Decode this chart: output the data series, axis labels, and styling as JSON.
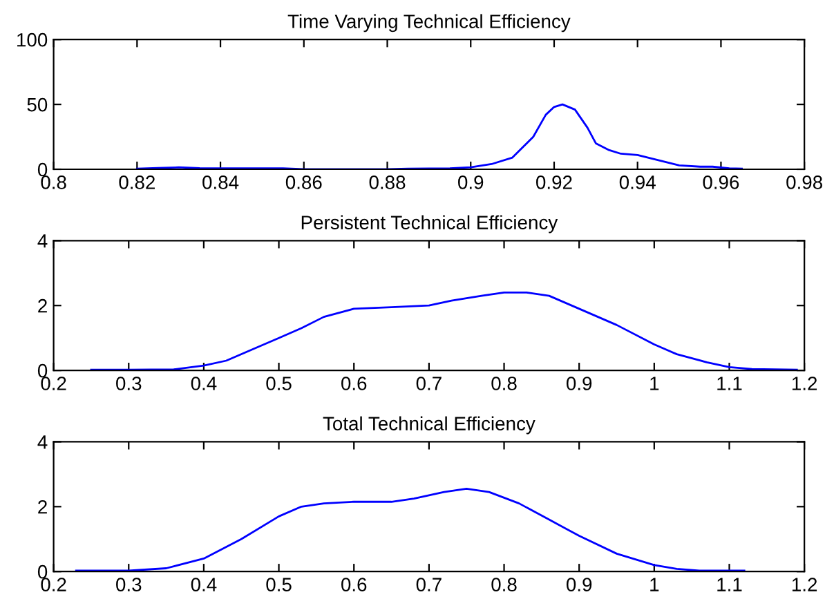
{
  "chart_data": [
    {
      "type": "line",
      "title": "Time Varying Technical Efficiency",
      "xlim": [
        0.8,
        0.98
      ],
      "xticks": [
        0.8,
        0.82,
        0.84,
        0.86,
        0.88,
        0.9,
        0.92,
        0.94,
        0.96,
        0.98
      ],
      "ylim": [
        0,
        100
      ],
      "yticks": [
        0,
        50,
        100
      ],
      "grid": false,
      "legend": false,
      "series": [
        {
          "color": "#0000ff",
          "x": [
            0.82,
            0.825,
            0.83,
            0.835,
            0.845,
            0.855,
            0.86,
            0.87,
            0.88,
            0.885,
            0.895,
            0.9,
            0.905,
            0.91,
            0.915,
            0.918,
            0.92,
            0.922,
            0.925,
            0.928,
            0.93,
            0.933,
            0.936,
            0.94,
            0.945,
            0.95,
            0.955,
            0.958,
            0.962,
            0.965
          ],
          "values": [
            0.5,
            1,
            1.5,
            0.8,
            0.7,
            0.7,
            0,
            0,
            0,
            0.5,
            0.7,
            1.5,
            4,
            9,
            25,
            42,
            48,
            50,
            46,
            32,
            20,
            15,
            12,
            11,
            7,
            3,
            2,
            2,
            0.7,
            0.5
          ]
        }
      ]
    },
    {
      "type": "line",
      "title": "Persistent Technical Efficiency",
      "xlim": [
        0.2,
        1.2
      ],
      "xticks": [
        0.2,
        0.3,
        0.4,
        0.5,
        0.6,
        0.7,
        0.8,
        0.9,
        1,
        1.1,
        1.2
      ],
      "ylim": [
        0,
        4
      ],
      "yticks": [
        0,
        2,
        4
      ],
      "grid": false,
      "legend": false,
      "series": [
        {
          "color": "#0000ff",
          "x": [
            0.25,
            0.3,
            0.36,
            0.4,
            0.43,
            0.47,
            0.5,
            0.53,
            0.56,
            0.6,
            0.65,
            0.7,
            0.73,
            0.77,
            0.8,
            0.83,
            0.86,
            0.9,
            0.95,
            1.0,
            1.03,
            1.07,
            1.1,
            1.13,
            1.19
          ],
          "values": [
            0.02,
            0.02,
            0.03,
            0.15,
            0.3,
            0.7,
            1.0,
            1.3,
            1.65,
            1.9,
            1.95,
            2.0,
            2.15,
            2.3,
            2.4,
            2.4,
            2.3,
            1.9,
            1.4,
            0.8,
            0.5,
            0.25,
            0.1,
            0.04,
            0.02
          ]
        }
      ]
    },
    {
      "type": "line",
      "title": "Total Technical Efficiency",
      "xlim": [
        0.2,
        1.2
      ],
      "xticks": [
        0.2,
        0.3,
        0.4,
        0.5,
        0.6,
        0.7,
        0.8,
        0.9,
        1,
        1.1,
        1.2
      ],
      "ylim": [
        0,
        4
      ],
      "yticks": [
        0,
        2,
        4
      ],
      "grid": false,
      "legend": false,
      "series": [
        {
          "color": "#0000ff",
          "x": [
            0.23,
            0.3,
            0.35,
            0.4,
            0.45,
            0.5,
            0.53,
            0.56,
            0.6,
            0.65,
            0.68,
            0.72,
            0.75,
            0.78,
            0.82,
            0.86,
            0.9,
            0.95,
            1.0,
            1.03,
            1.06,
            1.12
          ],
          "values": [
            0.03,
            0.03,
            0.1,
            0.4,
            1.0,
            1.7,
            2.0,
            2.1,
            2.15,
            2.15,
            2.25,
            2.45,
            2.55,
            2.45,
            2.1,
            1.6,
            1.1,
            0.55,
            0.2,
            0.08,
            0.03,
            0.03
          ]
        }
      ]
    }
  ]
}
